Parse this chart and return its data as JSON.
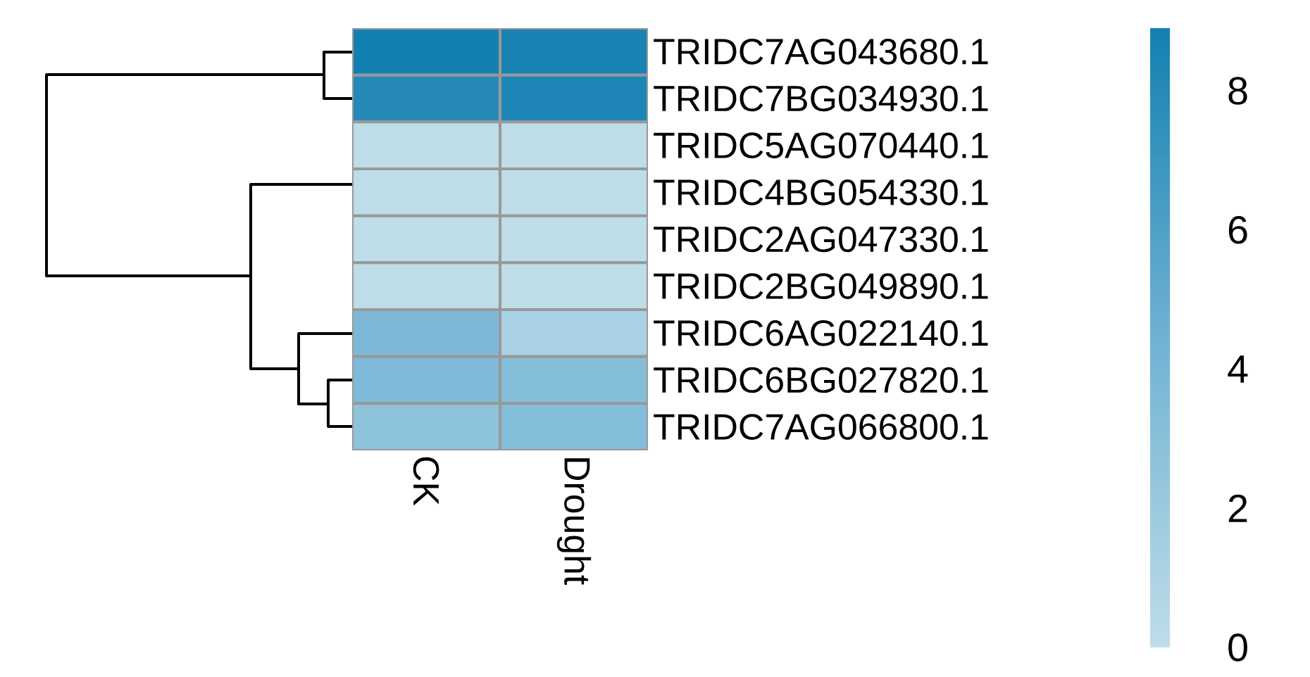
{
  "chart_data": {
    "type": "heatmap",
    "categories": [
      "CK",
      "Drought"
    ],
    "y_categories": [
      "TRIDC7AG043680.1",
      "TRIDC7BG034930.1",
      "TRIDC5AG070440.1",
      "TRIDC4BG054330.1",
      "TRIDC2AG047330.1",
      "TRIDC2BG049890.1",
      "TRIDC6AG022140.1",
      "TRIDC6BG027820.1",
      "TRIDC7AG066800.1"
    ],
    "cells": [
      [
        8.9,
        8.6
      ],
      [
        8.0,
        8.4
      ],
      [
        0.0,
        0.0
      ],
      [
        0.0,
        0.0
      ],
      [
        0.0,
        0.0
      ],
      [
        0.0,
        0.0
      ],
      [
        3.7,
        1.2
      ],
      [
        3.6,
        3.2
      ],
      [
        2.7,
        3.3
      ]
    ],
    "clim": [
      0,
      8.9
    ],
    "cticks": [
      0,
      2,
      4,
      6,
      8
    ]
  }
}
